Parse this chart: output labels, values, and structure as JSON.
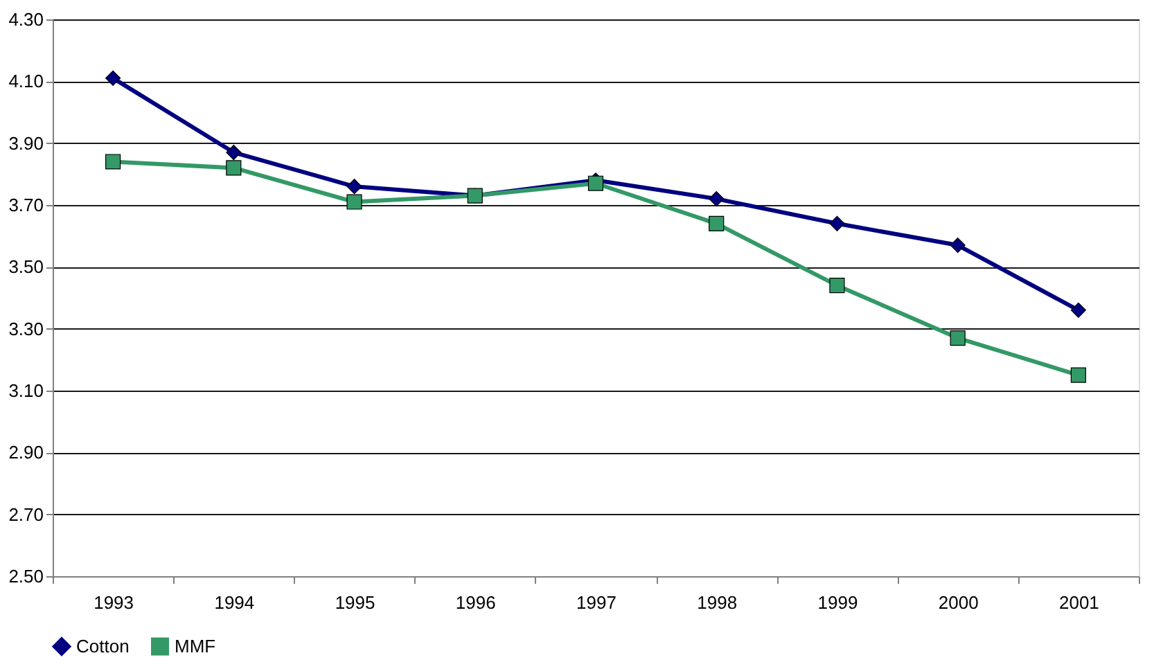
{
  "chart_data": {
    "type": "line",
    "categories": [
      "1993",
      "1994",
      "1995",
      "1996",
      "1997",
      "1998",
      "1999",
      "2000",
      "2001"
    ],
    "series": [
      {
        "name": "Cotton",
        "color": "#000080",
        "marker": "diamond",
        "values": [
          4.11,
          3.87,
          3.76,
          3.73,
          3.78,
          3.72,
          3.64,
          3.57,
          3.36
        ]
      },
      {
        "name": "MMF",
        "color": "#339966",
        "marker": "square",
        "values": [
          3.84,
          3.82,
          3.71,
          3.73,
          3.77,
          3.64,
          3.44,
          3.27,
          3.15
        ]
      }
    ],
    "ylim": [
      2.5,
      4.3
    ],
    "yticks": [
      {
        "value": 2.5,
        "label": "2.50"
      },
      {
        "value": 2.7,
        "label": "2.70"
      },
      {
        "value": 2.9,
        "label": "2.90"
      },
      {
        "value": 3.1,
        "label": "3.10"
      },
      {
        "value": 3.3,
        "label": "3.30"
      },
      {
        "value": 3.5,
        "label": "3.50"
      },
      {
        "value": 3.7,
        "label": "3.70"
      },
      {
        "value": 3.9,
        "label": "3.90"
      },
      {
        "value": 4.1,
        "label": "4.10"
      },
      {
        "value": 4.3,
        "label": "4.30"
      }
    ],
    "grid": "y",
    "legend": "bottom",
    "line_style": "solid"
  }
}
